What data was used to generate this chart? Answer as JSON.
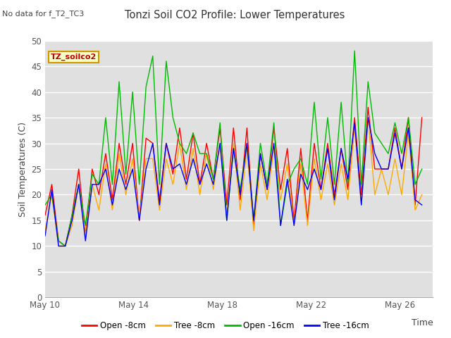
{
  "title": "Tonzi Soil CO2 Profile: Lower Temperatures",
  "subtitle": "No data for f_T2_TC3",
  "ylabel": "Soil Temperatures (C)",
  "xlabel": "Time",
  "legend_label": "TZ_soilco2",
  "ylim": [
    0,
    50
  ],
  "yticks": [
    0,
    5,
    10,
    15,
    20,
    25,
    30,
    35,
    40,
    45,
    50
  ],
  "series_colors": [
    "#ff0000",
    "#ffaa00",
    "#00bb00",
    "#0000ff"
  ],
  "series_labels": [
    "Open -8cm",
    "Tree -8cm",
    "Open -16cm",
    "Tree -16cm"
  ],
  "x_tick_labels": [
    "May 10",
    "May 14",
    "May 18",
    "May 22",
    "May 26"
  ],
  "open8": [
    16,
    22,
    11,
    10,
    16,
    25,
    12,
    25,
    20,
    28,
    19,
    30,
    22,
    30,
    15,
    31,
    30,
    19,
    30,
    24,
    33,
    23,
    32,
    22,
    30,
    23,
    33,
    18,
    33,
    19,
    33,
    14,
    28,
    21,
    33,
    21,
    29,
    15,
    29,
    15,
    30,
    21,
    30,
    20,
    29,
    21,
    35,
    20,
    37,
    25,
    25,
    25,
    33,
    25,
    35,
    18,
    35
  ],
  "tree8": [
    13,
    20,
    10,
    10,
    14,
    22,
    12,
    22,
    17,
    26,
    17,
    28,
    20,
    27,
    15,
    27,
    27,
    17,
    27,
    22,
    30,
    21,
    29,
    20,
    28,
    21,
    30,
    16,
    30,
    17,
    29,
    13,
    26,
    19,
    29,
    19,
    26,
    14,
    26,
    14,
    27,
    19,
    26,
    18,
    26,
    19,
    33,
    18,
    35,
    20,
    25,
    20,
    27,
    20,
    32,
    17,
    20
  ],
  "open16": [
    18,
    20,
    11,
    10,
    16,
    22,
    14,
    24,
    22,
    35,
    22,
    42,
    24,
    40,
    22,
    41,
    47,
    22,
    46,
    35,
    30,
    28,
    32,
    28,
    28,
    23,
    34,
    15,
    29,
    21,
    30,
    15,
    30,
    22,
    34,
    14,
    22,
    25,
    27,
    22,
    38,
    23,
    35,
    22,
    38,
    22,
    48,
    22,
    42,
    32,
    30,
    28,
    34,
    28,
    35,
    22,
    25
  ],
  "tree16": [
    12,
    21,
    10,
    10,
    15,
    22,
    11,
    22,
    22,
    25,
    18,
    25,
    21,
    25,
    15,
    25,
    30,
    18,
    30,
    25,
    26,
    22,
    27,
    22,
    26,
    22,
    30,
    15,
    29,
    20,
    30,
    15,
    28,
    21,
    30,
    14,
    23,
    14,
    24,
    21,
    25,
    21,
    29,
    19,
    29,
    23,
    34,
    18,
    35,
    28,
    25,
    25,
    32,
    25,
    33,
    19,
    18
  ]
}
